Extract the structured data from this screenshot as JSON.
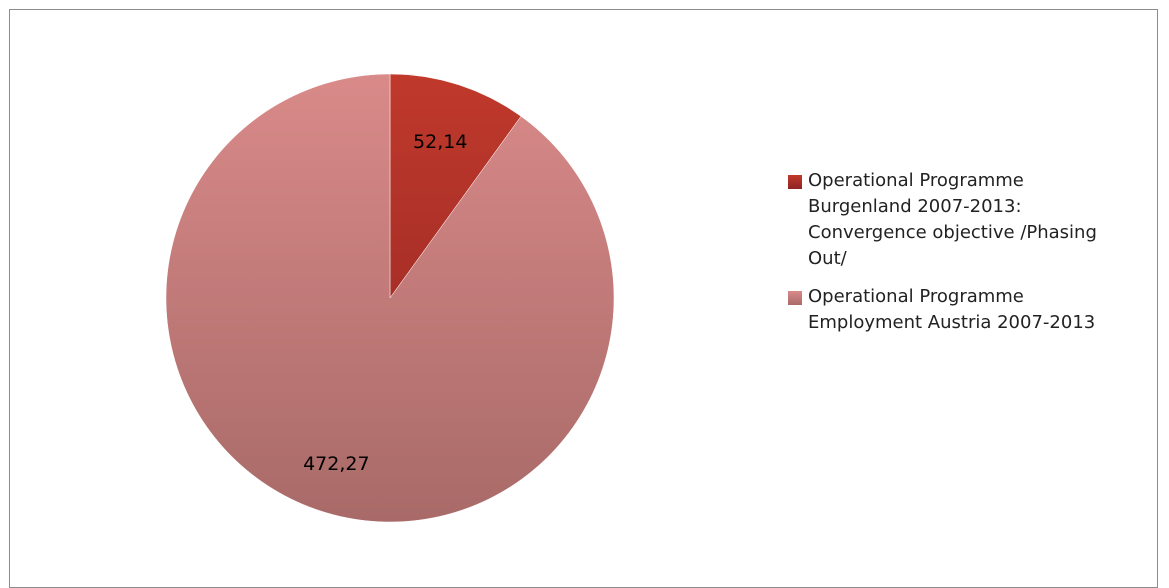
{
  "chart_data": {
    "type": "pie",
    "title": "",
    "slices": [
      {
        "label": "Operational Programme Burgenland 2007-2013: Convergence objective /Phasing Out/",
        "value": 52.14,
        "display_value": "52,14",
        "color": "#c0392b",
        "color_dark": "#8e2424"
      },
      {
        "label": "Operational Programme Employment Austria 2007-2013",
        "value": 472.27,
        "display_value": "472,27",
        "color": "#d98a89",
        "color_dark": "#a86a68"
      }
    ],
    "legend_placement": "right",
    "data_labels": true
  }
}
